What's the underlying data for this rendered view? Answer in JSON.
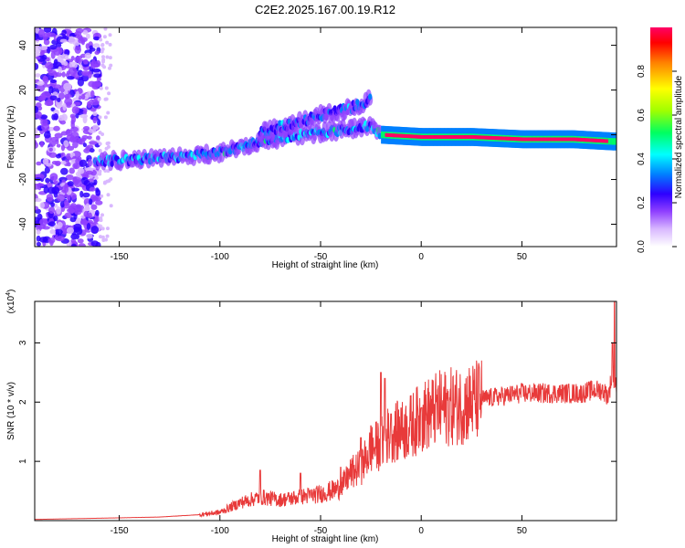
{
  "title": "C2E2.2025.167.00.19.R12",
  "colors": {
    "series_line": "#e83a3a",
    "colormap": [
      "#ffffff",
      "#d9b8ff",
      "#9040ff",
      "#2e00ff",
      "#0080ff",
      "#00ffff",
      "#00ff60",
      "#a0ff00",
      "#ffff00",
      "#ff8000",
      "#ff0000",
      "#ff0066"
    ]
  },
  "chart_data": [
    {
      "type": "heatmap",
      "xlabel": "Height of straight line (km)",
      "ylabel": "Frequency (Hz)",
      "xlim": [
        -192,
        97
      ],
      "ylim": [
        -50,
        48
      ],
      "xticks": [
        -150,
        -100,
        -50,
        0,
        50
      ],
      "yticks": [
        -40,
        -20,
        0,
        20,
        40
      ],
      "ridge": {
        "x": [
          -160,
          -140,
          -120,
          -100,
          -80,
          -60,
          -40,
          -25,
          -20,
          0,
          25,
          50,
          75,
          95
        ],
        "y": [
          -12,
          -11,
          -10,
          -8,
          -3,
          0,
          2,
          4,
          0,
          -1,
          -1,
          -2,
          -2,
          -3
        ],
        "description_values": "peak frequency track (Hz) along height (km)"
      },
      "secondary_ridge": {
        "x": [
          -80,
          -60,
          -45,
          -35,
          -25
        ],
        "y": [
          1,
          6,
          10,
          12,
          16
        ]
      },
      "colorbar": {
        "label": "Normalized spectral amplitude",
        "ticks": [
          0.0,
          0.2,
          0.4,
          0.6,
          0.8
        ],
        "range": [
          0,
          1
        ]
      }
    },
    {
      "type": "line",
      "xlabel": "Height of straight line (km)",
      "ylabel": "SNR (10 * v/v)",
      "yscale_label": "(x10",
      "yscale_exp": "4",
      "xlim": [
        -192,
        97
      ],
      "ylim": [
        0,
        3.7
      ],
      "xticks": [
        -150,
        -100,
        -50,
        0,
        50
      ],
      "yticks": [
        1,
        2,
        3
      ],
      "envelope": {
        "x": [
          -192,
          -160,
          -130,
          -110,
          -100,
          -90,
          -80,
          -70,
          -60,
          -50,
          -40,
          -35,
          -30,
          -25,
          -20,
          -15,
          -10,
          -5,
          0,
          10,
          20,
          30,
          40,
          50,
          60,
          70,
          80,
          85,
          90,
          93,
          95,
          97
        ],
        "y": [
          0.02,
          0.04,
          0.06,
          0.1,
          0.14,
          0.3,
          0.4,
          0.35,
          0.4,
          0.45,
          0.55,
          0.8,
          0.9,
          1.2,
          1.3,
          1.5,
          1.5,
          1.6,
          1.75,
          1.9,
          1.95,
          2.05,
          2.1,
          2.15,
          2.15,
          2.15,
          2.15,
          2.2,
          2.2,
          2.1,
          2.5,
          2.3
        ]
      },
      "peaks": {
        "x": [
          -80,
          -60,
          -40,
          -30,
          -25,
          -20,
          -18,
          -15,
          -10,
          0,
          95,
          96
        ],
        "y": [
          0.85,
          0.8,
          0.9,
          1.4,
          1.6,
          2.5,
          2.4,
          1.8,
          1.9,
          1.9,
          3.0,
          3.7
        ]
      }
    }
  ]
}
